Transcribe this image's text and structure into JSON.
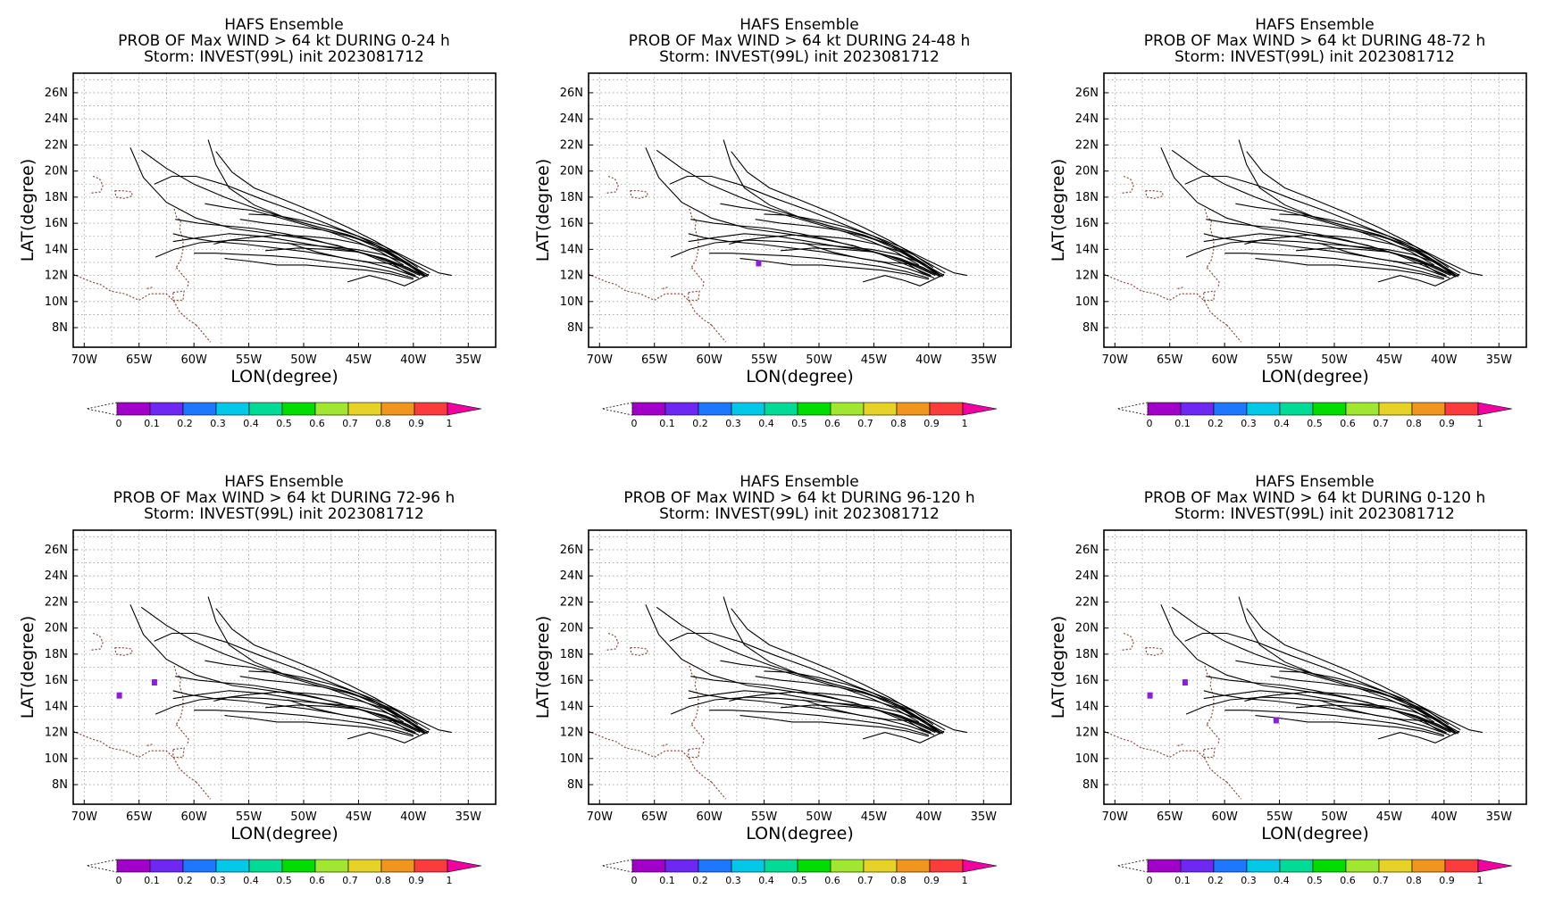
{
  "colors": {
    "track": "#000000",
    "coast": "#8b4a3c",
    "grid": "#9a9a9a",
    "prob_marker": "#8a1fd6"
  },
  "colorbar": {
    "labels": [
      "0",
      "0.1",
      "0.2",
      "0.3",
      "0.4",
      "0.5",
      "0.6",
      "0.7",
      "0.8",
      "0.9",
      "1"
    ],
    "colors": [
      "#a000c8",
      "#6e28f0",
      "#1e78ff",
      "#00c8e6",
      "#00dc96",
      "#00dc00",
      "#a0e632",
      "#e6d228",
      "#f0961e",
      "#fa3c3c",
      "#f000a0"
    ]
  },
  "panels": [
    {
      "title": [
        "HAFS Ensemble",
        "PROB OF Max WIND > 64 kt DURING  0-24 h",
        "Storm: INVEST(99L) init 2023081712"
      ],
      "chart_data": {
        "type": "map",
        "xlabel": "LON(degree)",
        "ylabel": "LAT(degree)",
        "xticks": [
          "70W",
          "65W",
          "60W",
          "55W",
          "50W",
          "45W",
          "40W",
          "35W"
        ],
        "yticks": [
          "8N",
          "10N",
          "12N",
          "14N",
          "16N",
          "18N",
          "20N",
          "22N",
          "24N",
          "26N"
        ],
        "xlim": [
          -71,
          -32.5
        ],
        "ylim": [
          6.5,
          27.5
        ],
        "prob_points": []
      }
    },
    {
      "title": [
        "HAFS Ensemble",
        "PROB OF Max WIND > 64 kt DURING 24-48 h",
        "Storm: INVEST(99L) init 2023081712"
      ],
      "chart_data": {
        "type": "map",
        "xlabel": "LON(degree)",
        "ylabel": "LAT(degree)",
        "xticks": [
          "70W",
          "65W",
          "60W",
          "55W",
          "50W",
          "45W",
          "40W",
          "35W"
        ],
        "yticks": [
          "8N",
          "10N",
          "12N",
          "14N",
          "16N",
          "18N",
          "20N",
          "22N",
          "24N",
          "26N"
        ],
        "xlim": [
          -71,
          -32.5
        ],
        "ylim": [
          6.5,
          27.5
        ],
        "prob_points": [
          {
            "lon": -55.5,
            "lat": 12.9,
            "p": 0.05
          }
        ]
      }
    },
    {
      "title": [
        "HAFS Ensemble",
        "PROB OF Max WIND > 64 kt DURING 48-72 h",
        "Storm: INVEST(99L) init 2023081712"
      ],
      "chart_data": {
        "type": "map",
        "xlabel": "LON(degree)",
        "ylabel": "LAT(degree)",
        "xticks": [
          "70W",
          "65W",
          "60W",
          "55W",
          "50W",
          "45W",
          "40W",
          "35W"
        ],
        "yticks": [
          "8N",
          "10N",
          "12N",
          "14N",
          "16N",
          "18N",
          "20N",
          "22N",
          "24N",
          "26N"
        ],
        "xlim": [
          -71,
          -32.5
        ],
        "ylim": [
          6.5,
          27.5
        ],
        "prob_points": []
      }
    },
    {
      "title": [
        "HAFS Ensemble",
        "PROB OF Max WIND > 64 kt DURING 72-96 h",
        "Storm: INVEST(99L) init 2023081712"
      ],
      "chart_data": {
        "type": "map",
        "xlabel": "LON(degree)",
        "ylabel": "LAT(degree)",
        "xticks": [
          "70W",
          "65W",
          "60W",
          "55W",
          "50W",
          "45W",
          "40W",
          "35W"
        ],
        "yticks": [
          "8N",
          "10N",
          "12N",
          "14N",
          "16N",
          "18N",
          "20N",
          "22N",
          "24N",
          "26N"
        ],
        "xlim": [
          -71,
          -32.5
        ],
        "ylim": [
          6.5,
          27.5
        ],
        "prob_points": [
          {
            "lon": -66.8,
            "lat": 14.8,
            "p": 0.05
          },
          {
            "lon": -63.6,
            "lat": 15.8,
            "p": 0.05
          }
        ]
      }
    },
    {
      "title": [
        "HAFS Ensemble",
        "PROB OF Max WIND > 64 kt DURING 96-120 h",
        "Storm: INVEST(99L) init 2023081712"
      ],
      "chart_data": {
        "type": "map",
        "xlabel": "LON(degree)",
        "ylabel": "LAT(degree)",
        "xticks": [
          "70W",
          "65W",
          "60W",
          "55W",
          "50W",
          "45W",
          "40W",
          "35W"
        ],
        "yticks": [
          "8N",
          "10N",
          "12N",
          "14N",
          "16N",
          "18N",
          "20N",
          "22N",
          "24N",
          "26N"
        ],
        "xlim": [
          -71,
          -32.5
        ],
        "ylim": [
          6.5,
          27.5
        ],
        "prob_points": []
      }
    },
    {
      "title": [
        "HAFS Ensemble",
        "PROB OF Max WIND > 64 kt DURING 0-120 h",
        "Storm: INVEST(99L) init 2023081712"
      ],
      "chart_data": {
        "type": "map",
        "xlabel": "LON(degree)",
        "ylabel": "LAT(degree)",
        "xticks": [
          "70W",
          "65W",
          "60W",
          "55W",
          "50W",
          "45W",
          "40W",
          "35W"
        ],
        "yticks": [
          "8N",
          "10N",
          "12N",
          "14N",
          "16N",
          "18N",
          "20N",
          "22N",
          "24N",
          "26N"
        ],
        "xlim": [
          -71,
          -32.5
        ],
        "ylim": [
          6.5,
          27.5
        ],
        "prob_points": [
          {
            "lon": -66.8,
            "lat": 14.8,
            "p": 0.05
          },
          {
            "lon": -63.6,
            "lat": 15.8,
            "p": 0.05
          },
          {
            "lon": -55.3,
            "lat": 12.9,
            "p": 0.05
          }
        ]
      }
    }
  ],
  "tracks": [
    [
      [
        -65.8,
        21.8
      ],
      [
        -64.6,
        19.5
      ],
      [
        -62.5,
        17.6
      ],
      [
        -59.8,
        16.4
      ],
      [
        -56.5,
        15.6
      ],
      [
        -53.0,
        15.2
      ],
      [
        -49.8,
        14.8
      ],
      [
        -46.9,
        14.3
      ],
      [
        -44.3,
        13.6
      ],
      [
        -42.0,
        12.8
      ],
      [
        -39.8,
        12.0
      ]
    ],
    [
      [
        -64.8,
        21.6
      ],
      [
        -62.5,
        20.2
      ],
      [
        -60.0,
        19.0
      ],
      [
        -57.2,
        18.0
      ],
      [
        -54.3,
        17.1
      ],
      [
        -51.2,
        16.3
      ],
      [
        -48.2,
        15.6
      ],
      [
        -45.6,
        15.0
      ],
      [
        -43.2,
        14.1
      ],
      [
        -40.9,
        13.0
      ],
      [
        -38.9,
        12.0
      ]
    ],
    [
      [
        -58.7,
        22.4
      ],
      [
        -58.0,
        20.5
      ],
      [
        -56.8,
        18.7
      ],
      [
        -54.5,
        17.4
      ],
      [
        -51.6,
        16.4
      ],
      [
        -48.6,
        15.7
      ],
      [
        -45.9,
        15.1
      ],
      [
        -43.4,
        14.3
      ],
      [
        -41.1,
        13.2
      ],
      [
        -39.3,
        12.1
      ]
    ],
    [
      [
        -58.0,
        21.5
      ],
      [
        -56.5,
        19.9
      ],
      [
        -54.5,
        18.7
      ],
      [
        -51.8,
        17.8
      ],
      [
        -48.9,
        16.8
      ],
      [
        -46.0,
        15.7
      ],
      [
        -43.4,
        14.6
      ],
      [
        -40.8,
        13.3
      ],
      [
        -38.5,
        12.2
      ]
    ],
    [
      [
        -63.6,
        19.0
      ],
      [
        -62.0,
        19.6
      ],
      [
        -59.8,
        19.6
      ],
      [
        -57.0,
        18.9
      ],
      [
        -54.0,
        17.9
      ],
      [
        -51.0,
        17.0
      ],
      [
        -48.0,
        16.0
      ],
      [
        -45.3,
        15.1
      ],
      [
        -42.8,
        14.1
      ],
      [
        -40.6,
        13.0
      ],
      [
        -38.7,
        11.9
      ]
    ],
    [
      [
        -63.5,
        13.4
      ],
      [
        -61.8,
        14.0
      ],
      [
        -59.5,
        14.5
      ],
      [
        -56.5,
        14.7
      ],
      [
        -53.5,
        14.6
      ],
      [
        -50.6,
        14.4
      ],
      [
        -47.8,
        14.2
      ],
      [
        -45.2,
        14.0
      ],
      [
        -42.8,
        13.6
      ],
      [
        -40.5,
        12.9
      ],
      [
        -38.6,
        12.0
      ]
    ],
    [
      [
        -61.7,
        16.3
      ],
      [
        -59.6,
        16.0
      ],
      [
        -57.2,
        15.8
      ],
      [
        -54.5,
        15.6
      ],
      [
        -51.7,
        15.2
      ],
      [
        -48.9,
        14.7
      ],
      [
        -46.2,
        14.1
      ],
      [
        -43.7,
        13.5
      ],
      [
        -41.5,
        12.8
      ],
      [
        -39.4,
        12.0
      ]
    ],
    [
      [
        -61.9,
        15.2
      ],
      [
        -60.5,
        14.9
      ],
      [
        -58.2,
        14.6
      ],
      [
        -55.4,
        14.4
      ],
      [
        -52.5,
        14.1
      ],
      [
        -49.6,
        13.8
      ],
      [
        -46.8,
        13.4
      ],
      [
        -44.1,
        13.0
      ],
      [
        -41.8,
        12.5
      ],
      [
        -39.8,
        11.9
      ]
    ],
    [
      [
        -60.0,
        13.7
      ],
      [
        -58.0,
        13.7
      ],
      [
        -55.5,
        13.6
      ],
      [
        -52.8,
        13.5
      ],
      [
        -50.0,
        13.3
      ],
      [
        -47.2,
        13.0
      ],
      [
        -44.5,
        12.7
      ],
      [
        -42.1,
        12.3
      ],
      [
        -40.0,
        11.8
      ]
    ],
    [
      [
        -57.2,
        13.3
      ],
      [
        -55.0,
        13.1
      ],
      [
        -52.4,
        12.8
      ],
      [
        -49.8,
        12.8
      ],
      [
        -47.0,
        12.6
      ],
      [
        -44.3,
        12.4
      ],
      [
        -42.0,
        12.1
      ],
      [
        -40.0,
        11.7
      ]
    ],
    [
      [
        -55.8,
        16.3
      ],
      [
        -53.5,
        16.0
      ],
      [
        -51.0,
        15.8
      ],
      [
        -48.4,
        15.5
      ],
      [
        -45.9,
        15.0
      ],
      [
        -43.6,
        14.4
      ],
      [
        -41.4,
        13.6
      ],
      [
        -39.6,
        12.6
      ]
    ],
    [
      [
        -61.9,
        14.6
      ],
      [
        -59.5,
        14.9
      ],
      [
        -56.8,
        15.2
      ],
      [
        -53.8,
        15.0
      ],
      [
        -50.9,
        14.6
      ],
      [
        -48.2,
        14.2
      ],
      [
        -45.6,
        13.9
      ],
      [
        -43.2,
        13.4
      ],
      [
        -41.0,
        12.7
      ],
      [
        -38.9,
        11.9
      ]
    ],
    [
      [
        -55.0,
        16.7
      ],
      [
        -52.5,
        16.6
      ],
      [
        -50.0,
        16.2
      ],
      [
        -47.5,
        15.7
      ],
      [
        -45.0,
        15.0
      ],
      [
        -42.6,
        14.2
      ],
      [
        -40.2,
        13.2
      ],
      [
        -37.7,
        12.2
      ],
      [
        -36.5,
        12.0
      ]
    ],
    [
      [
        -51.5,
        14.5
      ],
      [
        -48.8,
        13.8
      ],
      [
        -46.2,
        13.3
      ],
      [
        -43.8,
        13.0
      ],
      [
        -41.9,
        12.9
      ],
      [
        -40.8,
        12.3
      ],
      [
        -39.5,
        11.8
      ]
    ],
    [
      [
        -58.2,
        14.4
      ],
      [
        -56.8,
        14.7
      ],
      [
        -55.0,
        14.9
      ],
      [
        -52.4,
        15.1
      ],
      [
        -49.8,
        15.0
      ],
      [
        -47.2,
        14.8
      ],
      [
        -44.8,
        14.4
      ],
      [
        -42.5,
        13.8
      ],
      [
        -40.4,
        12.9
      ],
      [
        -39.0,
        12.0
      ]
    ],
    [
      [
        -46.0,
        11.5
      ],
      [
        -44.0,
        12.0
      ],
      [
        -42.2,
        11.6
      ],
      [
        -40.8,
        11.2
      ],
      [
        -39.3,
        11.8
      ],
      [
        -38.6,
        12.1
      ]
    ],
    [
      [
        -53.5,
        13.9
      ],
      [
        -50.5,
        14.1
      ],
      [
        -47.7,
        14.0
      ],
      [
        -45.0,
        13.8
      ],
      [
        -42.6,
        13.3
      ],
      [
        -40.5,
        12.6
      ],
      [
        -38.9,
        11.9
      ]
    ],
    [
      [
        -59.0,
        17.5
      ],
      [
        -57.0,
        17.2
      ],
      [
        -54.8,
        17.0
      ],
      [
        -52.5,
        16.5
      ],
      [
        -50.0,
        15.9
      ],
      [
        -47.5,
        15.3
      ],
      [
        -45.2,
        14.6
      ],
      [
        -43.0,
        13.8
      ],
      [
        -40.9,
        12.8
      ]
    ]
  ],
  "coast": {
    "puerto_rico": [
      [
        -67.2,
        18.5
      ],
      [
        -66.5,
        18.5
      ],
      [
        -65.7,
        18.4
      ],
      [
        -65.6,
        18.1
      ],
      [
        -66.3,
        17.9
      ],
      [
        -67.1,
        18.0
      ],
      [
        -67.2,
        18.5
      ]
    ],
    "vi": [
      [
        -69.2,
        19.6
      ],
      [
        -68.6,
        19.4
      ],
      [
        -68.3,
        18.9
      ],
      [
        -68.5,
        18.4
      ],
      [
        -69.5,
        18.3
      ]
    ],
    "venezuela_a": [
      [
        -71.0,
        12.1
      ],
      [
        -70.2,
        11.8
      ],
      [
        -69.3,
        11.5
      ],
      [
        -68.5,
        11.3
      ],
      [
        -67.6,
        10.8
      ],
      [
        -66.3,
        10.6
      ],
      [
        -65.0,
        10.1
      ],
      [
        -64.0,
        10.6
      ],
      [
        -62.5,
        10.6
      ],
      [
        -61.8,
        10.0
      ],
      [
        -61.3,
        9.2
      ],
      [
        -60.5,
        8.6
      ],
      [
        -59.8,
        8.2
      ]
    ],
    "venezuela_b": [
      [
        -59.8,
        8.2
      ],
      [
        -59.2,
        7.6
      ],
      [
        -58.5,
        6.9
      ]
    ],
    "trinidad": [
      [
        -61.9,
        10.7
      ],
      [
        -60.9,
        10.8
      ],
      [
        -61.0,
        10.1
      ],
      [
        -61.9,
        10.1
      ],
      [
        -61.9,
        10.7
      ]
    ],
    "antilles": [
      [
        -61.8,
        17.1
      ],
      [
        -61.6,
        16.5
      ],
      [
        -61.2,
        16.2
      ],
      [
        -61.3,
        15.6
      ],
      [
        -61.0,
        14.7
      ],
      [
        -61.0,
        14.0
      ],
      [
        -61.2,
        13.2
      ],
      [
        -61.7,
        12.5
      ]
    ],
    "grenada_a": [
      [
        -61.6,
        12.6
      ],
      [
        -60.5,
        11.5
      ],
      [
        -60.6,
        11.0
      ]
    ],
    "islands_b": [
      [
        -63.8,
        11.1
      ],
      [
        -64.2,
        11.0
      ],
      [
        -64.1,
        10.9
      ]
    ]
  }
}
